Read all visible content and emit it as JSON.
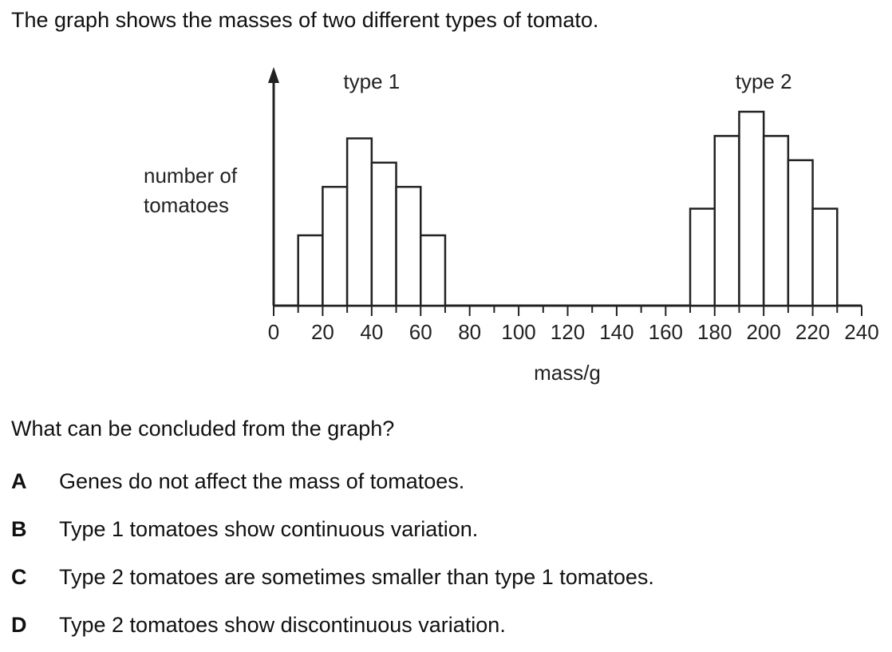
{
  "intro": "The graph shows the masses of two different types of tomato.",
  "question": "What can be concluded from the graph?",
  "options": [
    {
      "letter": "A",
      "text": "Genes do not affect the mass of tomatoes."
    },
    {
      "letter": "B",
      "text": "Type 1 tomatoes show continuous variation."
    },
    {
      "letter": "C",
      "text": "Type 2 tomatoes are sometimes smaller than type 1 tomatoes."
    },
    {
      "letter": "D",
      "text": "Type 2 tomatoes show discontinuous variation."
    }
  ],
  "chart_data": {
    "type": "histogram",
    "xlabel": "mass/g",
    "ylabel": [
      "number of",
      "tomatoes"
    ],
    "xlim": [
      0,
      240
    ],
    "ymax": 8,
    "x_ticks": [
      "0",
      "20",
      "40",
      "60",
      "80",
      "100",
      "120",
      "140",
      "160",
      "180",
      "200",
      "220",
      "240"
    ],
    "bin_width": 10,
    "series": [
      {
        "name": "type 1",
        "bins": [
          {
            "from": 10,
            "to": 20,
            "count": 2.9
          },
          {
            "from": 20,
            "to": 30,
            "count": 4.9
          },
          {
            "from": 30,
            "to": 40,
            "count": 6.9
          },
          {
            "from": 40,
            "to": 50,
            "count": 5.9
          },
          {
            "from": 50,
            "to": 60,
            "count": 4.9
          },
          {
            "from": 60,
            "to": 70,
            "count": 2.9
          }
        ]
      },
      {
        "name": "type 2",
        "bins": [
          {
            "from": 170,
            "to": 180,
            "count": 4.0
          },
          {
            "from": 180,
            "to": 190,
            "count": 7.0
          },
          {
            "from": 190,
            "to": 200,
            "count": 8.0
          },
          {
            "from": 200,
            "to": 210,
            "count": 7.0
          },
          {
            "from": 210,
            "to": 220,
            "count": 6.0
          },
          {
            "from": 220,
            "to": 230,
            "count": 4.0
          }
        ]
      }
    ],
    "grid": false
  }
}
